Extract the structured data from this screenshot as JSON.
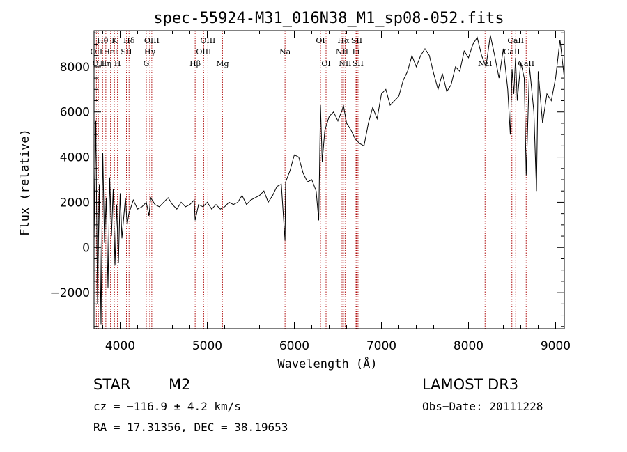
{
  "chart_data": {
    "type": "line",
    "title": "spec-55924-M31_016N38_M1_sp08-052.fits",
    "xlabel": "Wavelength (Å)",
    "ylabel": "Flux (relative)",
    "xlim": [
      3700,
      9100
    ],
    "ylim": [
      -3600,
      9600
    ],
    "xticks": [
      4000,
      5000,
      6000,
      7000,
      8000,
      9000
    ],
    "xtick_labels": [
      "4000",
      "5000",
      "6000",
      "7000",
      "8000",
      "9000"
    ],
    "yticks": [
      -2000,
      0,
      2000,
      4000,
      6000,
      8000
    ],
    "ytick_labels": [
      "−2000",
      "0",
      "2000",
      "4000",
      "6000",
      "8000"
    ],
    "series": [
      {
        "name": "spectrum",
        "color": "#000000",
        "x": [
          3700,
          3720,
          3740,
          3760,
          3780,
          3800,
          3820,
          3840,
          3860,
          3880,
          3900,
          3920,
          3940,
          3960,
          3980,
          4000,
          4020,
          4040,
          4060,
          4080,
          4100,
          4150,
          4200,
          4250,
          4300,
          4330,
          4350,
          4400,
          4450,
          4500,
          4550,
          4600,
          4650,
          4700,
          4750,
          4800,
          4850,
          4861,
          4900,
          4950,
          5000,
          5050,
          5100,
          5150,
          5200,
          5250,
          5300,
          5350,
          5400,
          5450,
          5500,
          5550,
          5600,
          5650,
          5700,
          5750,
          5800,
          5850,
          5893,
          5900,
          5950,
          6000,
          6050,
          6100,
          6150,
          6200,
          6250,
          6280,
          6300,
          6320,
          6350,
          6400,
          6450,
          6500,
          6550,
          6563,
          6600,
          6650,
          6700,
          6750,
          6800,
          6850,
          6900,
          6950,
          7000,
          7050,
          7100,
          7150,
          7200,
          7250,
          7300,
          7350,
          7400,
          7450,
          7500,
          7550,
          7600,
          7650,
          7700,
          7750,
          7800,
          7850,
          7900,
          7950,
          8000,
          8050,
          8100,
          8150,
          8200,
          8250,
          8300,
          8350,
          8400,
          8450,
          8480,
          8500,
          8520,
          8540,
          8560,
          8600,
          8640,
          8662,
          8700,
          8750,
          8780,
          8800,
          8850,
          8900,
          8950,
          9000,
          9050,
          9100
        ],
        "y": [
          300,
          5600,
          -2500,
          2800,
          -3400,
          4200,
          200,
          2200,
          -1800,
          3100,
          500,
          2600,
          -800,
          1900,
          -700,
          2400,
          400,
          1300,
          2200,
          1000,
          1500,
          2100,
          1700,
          1800,
          2000,
          1400,
          2200,
          1900,
          1800,
          2000,
          2200,
          1900,
          1700,
          2000,
          1800,
          1900,
          2100,
          1200,
          1900,
          1800,
          2000,
          1700,
          1900,
          1700,
          1800,
          2000,
          1900,
          2000,
          2300,
          1900,
          2100,
          2200,
          2300,
          2500,
          2000,
          2300,
          2700,
          2800,
          300,
          2900,
          3400,
          4100,
          4000,
          3300,
          2900,
          3000,
          2500,
          1200,
          6300,
          3800,
          5200,
          5800,
          6000,
          5600,
          6100,
          6300,
          5500,
          5200,
          4800,
          4600,
          4500,
          5500,
          6200,
          5700,
          6800,
          7000,
          6300,
          6500,
          6700,
          7400,
          7800,
          8500,
          8000,
          8500,
          8800,
          8500,
          7700,
          7000,
          7700,
          6900,
          7200,
          8000,
          7800,
          8700,
          8400,
          9000,
          9300,
          8500,
          8000,
          9400,
          8500,
          7500,
          8800,
          7000,
          5000,
          7900,
          6800,
          8400,
          6500,
          8200,
          7500,
          3200,
          8000,
          6000,
          2500,
          7800,
          5500,
          6800,
          6500,
          7500,
          9200,
          7500
        ]
      }
    ],
    "line_markers": [
      {
        "wavelength": 3727,
        "label": "OII",
        "row": 2
      },
      {
        "wavelength": 3750,
        "label": "OII",
        "row": 3
      },
      {
        "wavelength": 3798,
        "label": "Hθ",
        "row": 1
      },
      {
        "wavelength": 3835,
        "label": "Hη",
        "row": 3
      },
      {
        "wavelength": 3889,
        "label": "HeI",
        "row": 2
      },
      {
        "wavelength": 3934,
        "label": "K",
        "row": 1
      },
      {
        "wavelength": 3969,
        "label": "H",
        "row": 3
      },
      {
        "wavelength": 4072,
        "label": "SII",
        "row": 2
      },
      {
        "wavelength": 4102,
        "label": "Hδ",
        "row": 1
      },
      {
        "wavelength": 4300,
        "label": "G",
        "row": 3
      },
      {
        "wavelength": 4340,
        "label": "Hγ",
        "row": 2
      },
      {
        "wavelength": 4363,
        "label": "OIII",
        "row": 1
      },
      {
        "wavelength": 4861,
        "label": "Hβ",
        "row": 3
      },
      {
        "wavelength": 4959,
        "label": "OIII",
        "row": 2
      },
      {
        "wavelength": 5007,
        "label": "OIII",
        "row": 1
      },
      {
        "wavelength": 5175,
        "label": "Mg",
        "row": 3
      },
      {
        "wavelength": 5893,
        "label": "Na",
        "row": 2
      },
      {
        "wavelength": 6300,
        "label": "OI",
        "row": 1
      },
      {
        "wavelength": 6364,
        "label": "OI",
        "row": 3
      },
      {
        "wavelength": 6548,
        "label": "NII",
        "row": 2
      },
      {
        "wavelength": 6563,
        "label": "Hα",
        "row": 1
      },
      {
        "wavelength": 6583,
        "label": "NII",
        "row": 3
      },
      {
        "wavelength": 6708,
        "label": "Li",
        "row": 2
      },
      {
        "wavelength": 6716,
        "label": "SII",
        "row": 1
      },
      {
        "wavelength": 6731,
        "label": "SII",
        "row": 3
      },
      {
        "wavelength": 8498,
        "label": "CaII",
        "row": 2
      },
      {
        "wavelength": 8542,
        "label": "CaII",
        "row": 1
      },
      {
        "wavelength": 8662,
        "label": "CaII",
        "row": 3
      },
      {
        "wavelength": 8190,
        "label": "NaI",
        "row": 3
      }
    ]
  },
  "info": {
    "object_class": "STAR",
    "subclass": "M2",
    "survey": "LAMOST  DR3",
    "redshift": "cz = −116.9 ± 4.2 km/s",
    "obs_date": "Obs−Date: 20111228",
    "coords": "RA =  17.31356, DEC =  38.19653"
  }
}
